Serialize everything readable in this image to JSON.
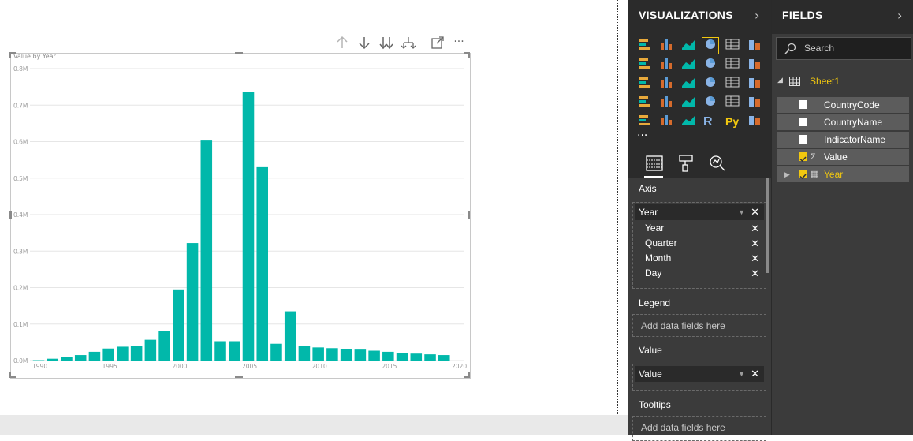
{
  "visual_toolbar": {
    "icons": [
      "arrow-up-icon",
      "arrow-down-icon",
      "double-arrow-down-icon",
      "expand-hierarchy-icon",
      "focus-mode-icon",
      "more-options-icon"
    ]
  },
  "chart_data": {
    "type": "bar",
    "title": "Value by Year",
    "x": [
      1990,
      1991,
      1992,
      1993,
      1994,
      1995,
      1996,
      1997,
      1998,
      1999,
      2000,
      2001,
      2002,
      2003,
      2004,
      2005,
      2006,
      2007,
      2008,
      2009,
      2010,
      2011,
      2012,
      2013,
      2014,
      2015,
      2016,
      2017,
      2018,
      2019
    ],
    "values": [
      1000,
      5000,
      10000,
      15000,
      24000,
      33000,
      38000,
      41000,
      57000,
      81000,
      195000,
      322000,
      603000,
      53000,
      53000,
      737000,
      530000,
      46000,
      135000,
      39000,
      36000,
      34000,
      32000,
      30000,
      27000,
      24000,
      21000,
      19000,
      17000,
      15000
    ],
    "x_tick_labels": [
      "1990",
      "1995",
      "2000",
      "2005",
      "2010",
      "2015",
      "2020"
    ],
    "y_tick_labels": [
      "0.0M",
      "0.1M",
      "0.2M",
      "0.3M",
      "0.4M",
      "0.5M",
      "0.6M",
      "0.7M",
      "0.8M"
    ],
    "ylim": [
      0,
      800000
    ],
    "xlim": [
      1990,
      2020
    ],
    "grid": true,
    "color": "#01b8aa"
  },
  "visualizations": {
    "title": "VISUALIZATIONS",
    "chevron": "›",
    "gallery_icons": [
      "stacked-bar-chart-icon",
      "stacked-column-chart-icon",
      "clustered-bar-chart-icon",
      "clustered-column-chart-icon",
      "100-stacked-bar-chart-icon",
      "100-stacked-column-chart-icon",
      "line-chart-icon",
      "area-chart-icon",
      "stacked-area-chart-icon",
      "line-and-stacked-column-chart-icon",
      "line-and-clustered-column-chart-icon",
      "ribbon-chart-icon",
      "waterfall-chart-icon",
      "scatter-chart-icon",
      "pie-chart-icon",
      "donut-chart-icon",
      "treemap-icon",
      "map-icon",
      "filled-map-icon",
      "funnel-icon",
      "gauge-icon",
      "card-icon",
      "multi-row-card-icon",
      "kpi-icon",
      "slicer-icon",
      "table-icon",
      "matrix-icon",
      "r-visual-icon",
      "python-visual-icon",
      "globe-icon"
    ],
    "r_label": "R",
    "py_label": "Py",
    "more_label": "···",
    "tabs": [
      "fields-tab-icon",
      "format-tab-icon",
      "analytics-tab-icon"
    ],
    "axis": {
      "label": "Axis",
      "chip": "Year",
      "hierarchy": [
        "Year",
        "Quarter",
        "Month",
        "Day"
      ]
    },
    "legend": {
      "label": "Legend",
      "placeholder": "Add data fields here"
    },
    "value": {
      "label": "Value",
      "chip": "Value"
    },
    "tooltips": {
      "label": "Tooltips",
      "placeholder": "Add data fields here"
    },
    "remove_glyph": "✕",
    "dropdown_glyph": "▼"
  },
  "fields": {
    "title": "FIELDS",
    "chevron": "›",
    "search_placeholder": "Search",
    "table_name": "Sheet1",
    "items": [
      {
        "name": "CountryCode",
        "checked": false,
        "icon": ""
      },
      {
        "name": "CountryName",
        "checked": false,
        "icon": ""
      },
      {
        "name": "IndicatorName",
        "checked": false,
        "icon": ""
      },
      {
        "name": "Value",
        "checked": true,
        "icon": "Σ"
      },
      {
        "name": "Year",
        "checked": true,
        "icon": "▦"
      }
    ],
    "accent": "#f2c80f"
  }
}
